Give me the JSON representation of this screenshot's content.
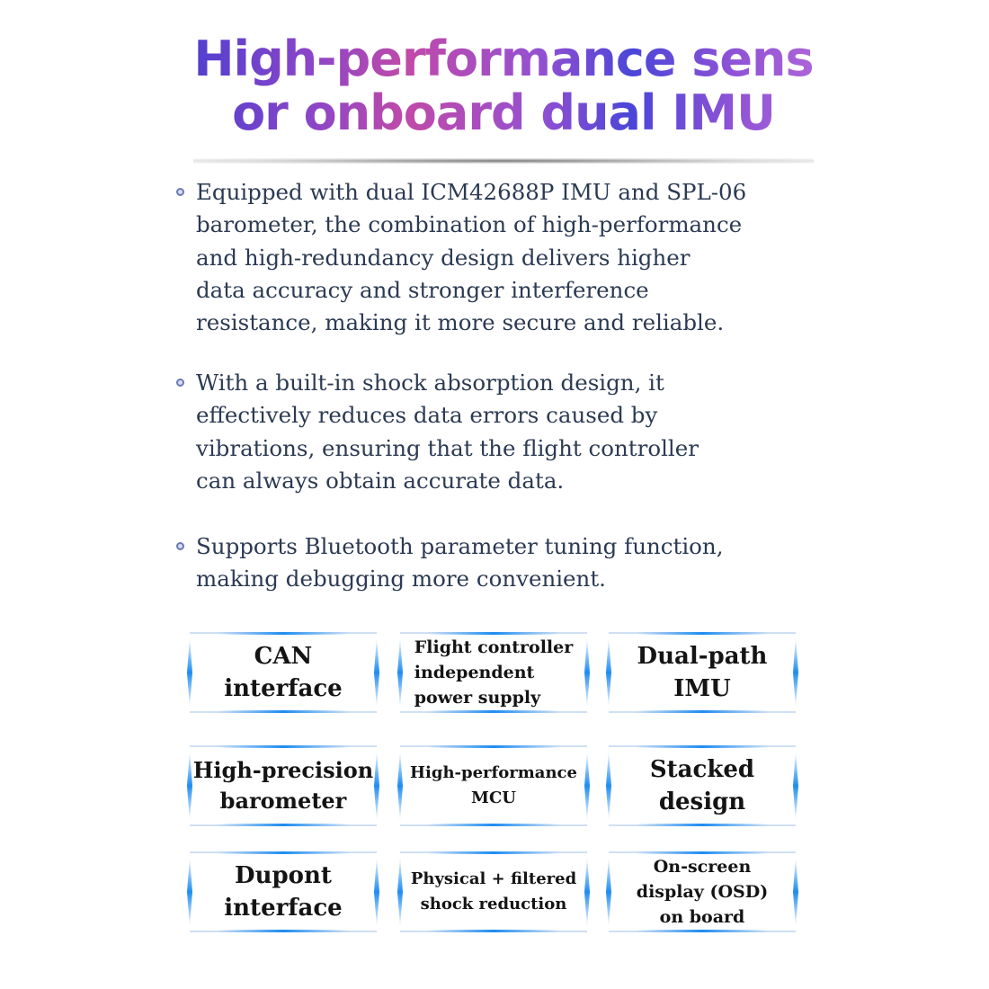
{
  "title": {
    "line1": "High-performance sens",
    "line2": "or onboard dual IMU"
  },
  "bullets": [
    {
      "text": "Equipped with dual ICM42688P IMU and SPL-06 barometer, the combination of high-performance and high-redundancy design delivers higher data accuracy and stronger interference resistance, making it more secure and reliable.",
      "lines": [
        "Equipped with dual ICM42688P IMU and SPL-06",
        "barometer, the combination of high-performance",
        "and high-redundancy design delivers higher",
        "data accuracy and stronger interference",
        "resistance, making it more secure and reliable."
      ]
    },
    {
      "text": "With a built-in shock absorption design, it effectively reduces data errors caused by vibrations, ensuring that the flight controller can always obtain accurate data.",
      "lines": [
        "With a built-in shock absorption design, it",
        "effectively reduces data errors caused by",
        "vibrations, ensuring that the flight controller",
        "can always obtain accurate data."
      ]
    },
    {
      "text": "Supports Bluetooth parameter tuning function, making debugging more convenient.",
      "lines": [
        "Supports Bluetooth parameter tuning function,",
        "making debugging more convenient."
      ]
    }
  ],
  "features": [
    {
      "lines": [
        "CAN",
        "interface"
      ]
    },
    {
      "lines": [
        "Flight controller",
        "independent",
        "power supply"
      ]
    },
    {
      "lines": [
        "Dual-path",
        "IMU"
      ]
    },
    {
      "lines": [
        "High-precision",
        "barometer"
      ]
    },
    {
      "lines": [
        "High-performance",
        "MCU"
      ]
    },
    {
      "lines": [
        "Stacked",
        "design"
      ]
    },
    {
      "lines": [
        "Dupont",
        "interface"
      ]
    },
    {
      "lines": [
        "Physical + filtered",
        "shock reduction"
      ]
    },
    {
      "lines": [
        "On-screen",
        "display (OSD)",
        "on board"
      ]
    }
  ],
  "colors": {
    "accent": "#1e8cf0",
    "text": "#2b3a52",
    "title_gradient": [
      "#4b3fd0",
      "#c04aa8",
      "#b267d8"
    ]
  }
}
